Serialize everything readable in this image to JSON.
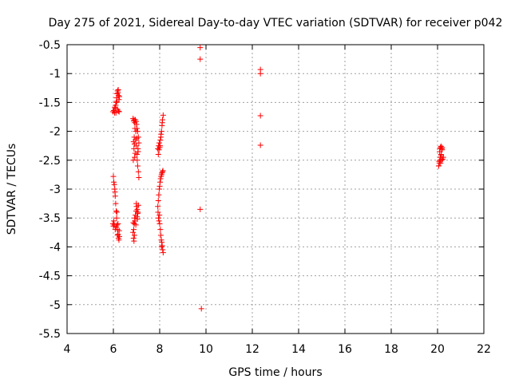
{
  "chart_data": {
    "type": "scatter",
    "title": "Day 275 of 2021, Sidereal Day-to-day VTEC variation (SDTVAR) for receiver p042",
    "xlabel": "GPS time / hours",
    "ylabel": "SDTVAR / TECUs",
    "xlim": [
      4,
      22
    ],
    "ylim": [
      -5.5,
      -0.5
    ],
    "x_ticks": [
      "4",
      "6",
      "8",
      "10",
      "12",
      "14",
      "16",
      "18",
      "20",
      "22"
    ],
    "y_ticks": [
      "-0.5",
      "-1",
      "-1.5",
      "-2",
      "-2.5",
      "-3",
      "-3.5",
      "-4",
      "-4.5",
      "-5",
      "-5.5"
    ],
    "grid": true,
    "legend": "none",
    "marker": "+",
    "color": "#ff0000",
    "series": [
      {
        "name": "SDTVAR",
        "points": [
          [
            5.98,
            -1.66
          ],
          [
            6.02,
            -1.64
          ],
          [
            6.05,
            -1.68
          ],
          [
            6.08,
            -1.6
          ],
          [
            6.1,
            -1.55
          ],
          [
            6.12,
            -1.5
          ],
          [
            6.14,
            -1.42
          ],
          [
            6.16,
            -1.35
          ],
          [
            6.18,
            -1.3
          ],
          [
            6.2,
            -1.33
          ],
          [
            6.22,
            -1.38
          ],
          [
            6.24,
            -1.45
          ],
          [
            6.26,
            -1.4
          ],
          [
            6.18,
            -1.62
          ],
          [
            6.22,
            -1.65
          ],
          [
            6.06,
            -1.58
          ],
          [
            6.15,
            -1.48
          ],
          [
            6.25,
            -1.66
          ],
          [
            6.11,
            -1.68
          ],
          [
            6.21,
            -1.28
          ],
          [
            6.0,
            -2.78
          ],
          [
            6.02,
            -2.88
          ],
          [
            6.04,
            -2.92
          ],
          [
            6.06,
            -3.0
          ],
          [
            6.08,
            -3.12
          ],
          [
            6.1,
            -3.25
          ],
          [
            6.12,
            -3.38
          ],
          [
            6.14,
            -3.5
          ],
          [
            6.16,
            -3.62
          ],
          [
            6.18,
            -3.7
          ],
          [
            6.2,
            -3.78
          ],
          [
            6.22,
            -3.85
          ],
          [
            6.24,
            -3.88
          ],
          [
            6.26,
            -3.82
          ],
          [
            5.98,
            -3.6
          ],
          [
            6.0,
            -3.64
          ],
          [
            6.04,
            -3.62
          ],
          [
            6.08,
            -3.7
          ],
          [
            6.12,
            -3.66
          ],
          [
            6.18,
            -3.8
          ],
          [
            6.02,
            -3.55
          ],
          [
            6.25,
            -3.72
          ],
          [
            6.15,
            -3.4
          ],
          [
            6.2,
            -3.6
          ],
          [
            6.07,
            -3.05
          ],
          [
            6.85,
            -1.78
          ],
          [
            6.88,
            -1.82
          ],
          [
            6.9,
            -1.8
          ],
          [
            6.92,
            -1.85
          ],
          [
            6.95,
            -1.8
          ],
          [
            6.98,
            -1.83
          ],
          [
            7.0,
            -1.88
          ],
          [
            7.02,
            -1.95
          ],
          [
            7.05,
            -2.0
          ],
          [
            7.08,
            -2.1
          ],
          [
            7.1,
            -2.2
          ],
          [
            7.06,
            -2.3
          ],
          [
            7.02,
            -2.4
          ],
          [
            6.96,
            -2.15
          ],
          [
            6.9,
            -2.1
          ],
          [
            6.87,
            -2.18
          ],
          [
            6.89,
            -2.3
          ],
          [
            6.92,
            -2.45
          ],
          [
            6.94,
            -2.38
          ],
          [
            6.99,
            -2.25
          ],
          [
            7.03,
            -2.5
          ],
          [
            7.05,
            -2.6
          ],
          [
            7.08,
            -2.7
          ],
          [
            7.1,
            -2.8
          ],
          [
            6.86,
            -2.5
          ],
          [
            6.97,
            -2.0
          ],
          [
            7.07,
            -2.35
          ],
          [
            6.93,
            -1.95
          ],
          [
            7.01,
            -2.12
          ],
          [
            6.91,
            -2.22
          ],
          [
            6.85,
            -3.75
          ],
          [
            6.87,
            -3.85
          ],
          [
            6.89,
            -3.9
          ],
          [
            6.88,
            -3.7
          ],
          [
            6.9,
            -3.6
          ],
          [
            6.92,
            -3.5
          ],
          [
            6.95,
            -3.45
          ],
          [
            6.98,
            -3.38
          ],
          [
            7.0,
            -3.3
          ],
          [
            7.03,
            -3.35
          ],
          [
            7.05,
            -3.42
          ],
          [
            7.08,
            -3.28
          ],
          [
            6.93,
            -3.55
          ],
          [
            6.97,
            -3.62
          ],
          [
            7.02,
            -3.48
          ],
          [
            7.06,
            -3.4
          ],
          [
            6.86,
            -3.58
          ],
          [
            6.99,
            -3.25
          ],
          [
            7.04,
            -3.52
          ],
          [
            6.91,
            -3.8
          ],
          [
            7.92,
            -2.3
          ],
          [
            7.95,
            -2.25
          ],
          [
            7.98,
            -2.2
          ],
          [
            8.0,
            -2.28
          ],
          [
            8.03,
            -2.15
          ],
          [
            8.05,
            -2.1
          ],
          [
            8.08,
            -2.0
          ],
          [
            8.1,
            -1.9
          ],
          [
            8.12,
            -1.8
          ],
          [
            8.15,
            -1.72
          ],
          [
            8.02,
            -2.25
          ],
          [
            7.97,
            -2.32
          ],
          [
            8.06,
            -2.05
          ],
          [
            8.11,
            -1.85
          ],
          [
            7.94,
            -2.4
          ],
          [
            7.92,
            -3.3
          ],
          [
            7.94,
            -3.2
          ],
          [
            7.96,
            -3.1
          ],
          [
            7.98,
            -3.0
          ],
          [
            8.0,
            -2.95
          ],
          [
            8.02,
            -2.88
          ],
          [
            8.04,
            -2.82
          ],
          [
            8.06,
            -2.78
          ],
          [
            8.08,
            -2.75
          ],
          [
            8.1,
            -2.72
          ],
          [
            8.12,
            -2.7
          ],
          [
            8.14,
            -2.68
          ],
          [
            7.93,
            -3.4
          ],
          [
            7.95,
            -3.5
          ],
          [
            7.97,
            -3.55
          ],
          [
            8.0,
            -3.6
          ],
          [
            8.03,
            -3.7
          ],
          [
            8.05,
            -3.8
          ],
          [
            8.07,
            -3.88
          ],
          [
            8.09,
            -3.92
          ],
          [
            8.11,
            -3.98
          ],
          [
            8.13,
            -4.05
          ],
          [
            8.15,
            -4.1
          ],
          [
            8.08,
            -4.0
          ],
          [
            7.99,
            -3.45
          ],
          [
            9.75,
            -0.55
          ],
          [
            9.75,
            -0.75
          ],
          [
            9.75,
            -3.35
          ],
          [
            9.8,
            -5.07
          ],
          [
            12.35,
            -0.93
          ],
          [
            12.35,
            -1.0
          ],
          [
            12.35,
            -1.73
          ],
          [
            12.35,
            -2.24
          ],
          [
            20.05,
            -2.6
          ],
          [
            20.08,
            -2.55
          ],
          [
            20.1,
            -2.5
          ],
          [
            20.12,
            -2.45
          ],
          [
            20.15,
            -2.4
          ],
          [
            20.1,
            -2.3
          ],
          [
            20.12,
            -2.28
          ],
          [
            20.15,
            -2.26
          ],
          [
            20.18,
            -2.3
          ],
          [
            20.2,
            -2.32
          ],
          [
            20.22,
            -2.48
          ],
          [
            20.25,
            -2.45
          ],
          [
            20.07,
            -2.52
          ],
          [
            20.13,
            -2.55
          ],
          [
            20.18,
            -2.5
          ],
          [
            20.2,
            -2.28
          ],
          [
            20.16,
            -2.42
          ],
          [
            20.09,
            -2.35
          ]
        ]
      }
    ]
  }
}
